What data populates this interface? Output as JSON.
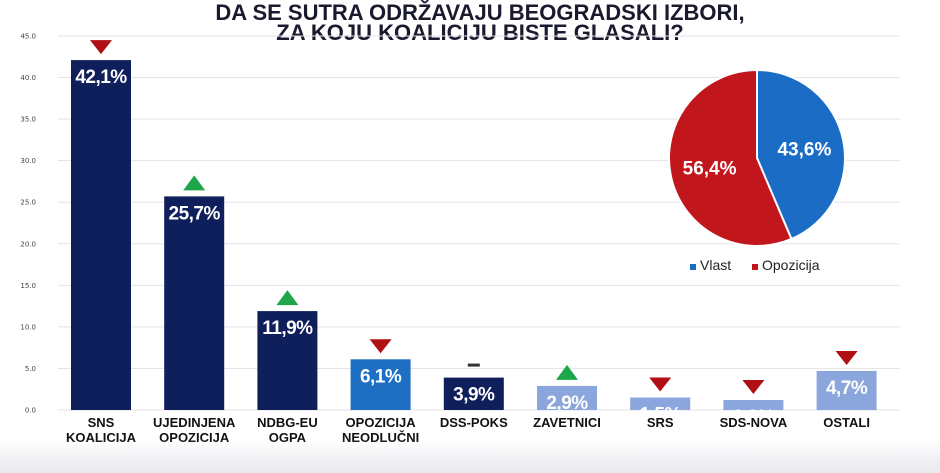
{
  "title_lines": [
    "DA SE SUTRA ODRŽAVAJU BEOGRADSKI IZBORI,",
    "ZA KOJU KOALICIJU BISTE GLASALI?"
  ],
  "chart_data": [
    {
      "type": "bar",
      "categories": [
        [
          "SNS",
          "KOALICIJA"
        ],
        [
          "UJEDINJENA",
          "OPOZICIJA"
        ],
        [
          "NDBG-EU",
          "OGPA"
        ],
        [
          "OPOZICIJA",
          "NEODLUČNI"
        ],
        [
          "DSS-POKS"
        ],
        [
          "ZAVETNICI"
        ],
        [
          "SRS"
        ],
        [
          "SDS-NOVA"
        ],
        [
          "OSTALI"
        ]
      ],
      "values": [
        42.1,
        25.7,
        11.9,
        6.1,
        3.9,
        2.9,
        1.5,
        1.2,
        4.7
      ],
      "value_labels": [
        "42,1%",
        "25,7%",
        "11,9%",
        "6,1%",
        "3,9%",
        "2,9%",
        "1,5%",
        "1,2%",
        "4,7%"
      ],
      "bar_colors": [
        "#0f1f5c",
        "#0f1f5c",
        "#0f1f5c",
        "#1e6fc4",
        "#0f1f5c",
        "#8aa6dc",
        "#8aa6dc",
        "#8aa6dc",
        "#8aa6dc"
      ],
      "value_label_colors": [
        "#ffffff",
        "#ffffff",
        "#ffffff",
        "#ffffff",
        "#ffffff",
        "#ffffff",
        "#ffffff",
        "#ffffff",
        "#ffffff"
      ],
      "trend": [
        "down",
        "up",
        "up",
        "down",
        "none",
        "up",
        "down",
        "down",
        "down"
      ],
      "trend_colors": {
        "up": "#1fa64a",
        "down": "#b00f14",
        "none": "#333333"
      },
      "ylim": [
        0,
        45
      ],
      "yticks": [
        0,
        5,
        10,
        15,
        20,
        25,
        30,
        35,
        40,
        45
      ],
      "ytick_labels": [
        "0.0",
        "5.0",
        "10.0",
        "15.0",
        "20.0",
        "25.0",
        "30.0",
        "35.0",
        "40.0",
        "45.0"
      ],
      "grid": true
    },
    {
      "type": "pie",
      "labels": [
        "Vlast",
        "Opozicija"
      ],
      "values": [
        43.6,
        56.4
      ],
      "value_labels": [
        "43,6%",
        "56,4%"
      ],
      "colors": [
        "#1b6cc4",
        "#c0161c"
      ],
      "legend_position": "bottom"
    }
  ]
}
